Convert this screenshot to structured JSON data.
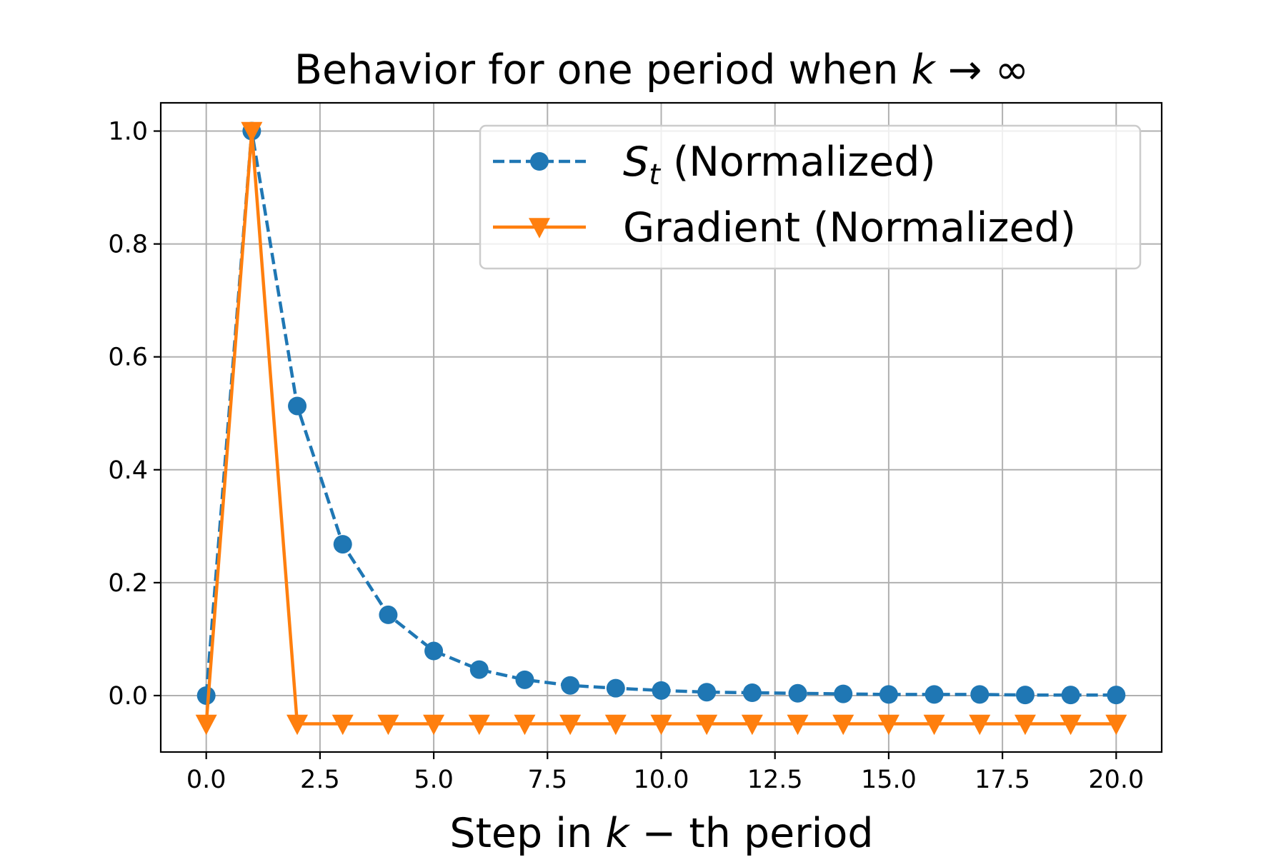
{
  "chart_data": {
    "type": "line",
    "title": "Behavior for one period when k → ∞",
    "title_parts": {
      "prefix": "Behavior for one period when ",
      "var": "k",
      "suffix": " → ∞"
    },
    "xlabel": "Step in k − th period",
    "xlabel_parts": {
      "prefix": "Step in ",
      "var": "k",
      "suffix": " − th period"
    },
    "ylabel": "",
    "xlim": [
      -1.0,
      21.0
    ],
    "ylim": [
      -0.1,
      1.05
    ],
    "xticks": [
      0.0,
      2.5,
      5.0,
      7.5,
      10.0,
      12.5,
      15.0,
      17.5,
      20.0
    ],
    "xtick_labels": [
      "0.0",
      "2.5",
      "5.0",
      "7.5",
      "10.0",
      "12.5",
      "15.0",
      "17.5",
      "20.0"
    ],
    "yticks": [
      0.0,
      0.2,
      0.4,
      0.6,
      0.8,
      1.0
    ],
    "ytick_labels": [
      "0.0",
      "0.2",
      "0.4",
      "0.6",
      "0.8",
      "1.0"
    ],
    "grid": true,
    "legend_position": "upper right",
    "x": [
      0,
      1,
      2,
      3,
      4,
      5,
      6,
      7,
      8,
      9,
      10,
      11,
      12,
      13,
      14,
      15,
      16,
      17,
      18,
      19,
      20
    ],
    "series": [
      {
        "name": "S_t (Normalized)",
        "legend_label": {
          "var": "S",
          "sub": "t",
          "suffix": " (Normalized)"
        },
        "color": "#1f77b4",
        "line_style": "dashed",
        "marker": "circle",
        "values": [
          0.0,
          1.0,
          0.513,
          0.268,
          0.143,
          0.079,
          0.046,
          0.028,
          0.018,
          0.013,
          0.009,
          0.006,
          0.005,
          0.004,
          0.003,
          0.002,
          0.002,
          0.002,
          0.001,
          0.001,
          0.001
        ]
      },
      {
        "name": "Gradient (Normalized)",
        "legend_label": {
          "var": "",
          "sub": "",
          "suffix": "Gradient (Normalized)"
        },
        "color": "#ff7f0e",
        "line_style": "solid",
        "marker": "triangle_down",
        "values": [
          -0.05,
          1.0,
          -0.05,
          -0.05,
          -0.05,
          -0.05,
          -0.05,
          -0.05,
          -0.05,
          -0.05,
          -0.05,
          -0.05,
          -0.05,
          -0.05,
          -0.05,
          -0.05,
          -0.05,
          -0.05,
          -0.05,
          -0.05,
          -0.05
        ]
      }
    ]
  }
}
